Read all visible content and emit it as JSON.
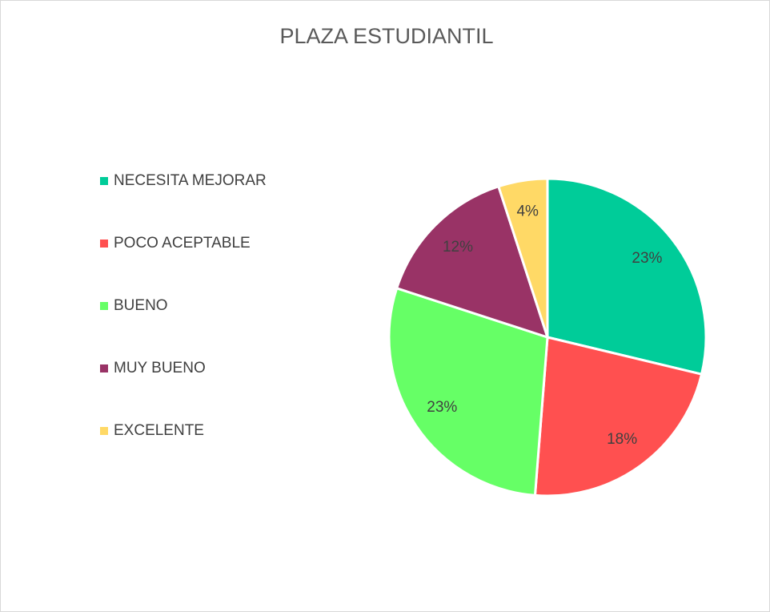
{
  "chart_data": {
    "type": "pie",
    "title": "PLAZA ESTUDIANTIL",
    "categories": [
      "NECESITA MEJORAR",
      "POCO ACEPTABLE",
      "BUENO",
      "MUY BUENO",
      "EXCELENTE"
    ],
    "values": [
      23,
      18,
      23,
      12,
      4
    ],
    "value_labels": [
      "23%",
      "18%",
      "23%",
      "12%",
      "4%"
    ],
    "colors": [
      "#00cc99",
      "#ff5050",
      "#66ff66",
      "#993366",
      "#ffd966"
    ],
    "legend": "left"
  }
}
